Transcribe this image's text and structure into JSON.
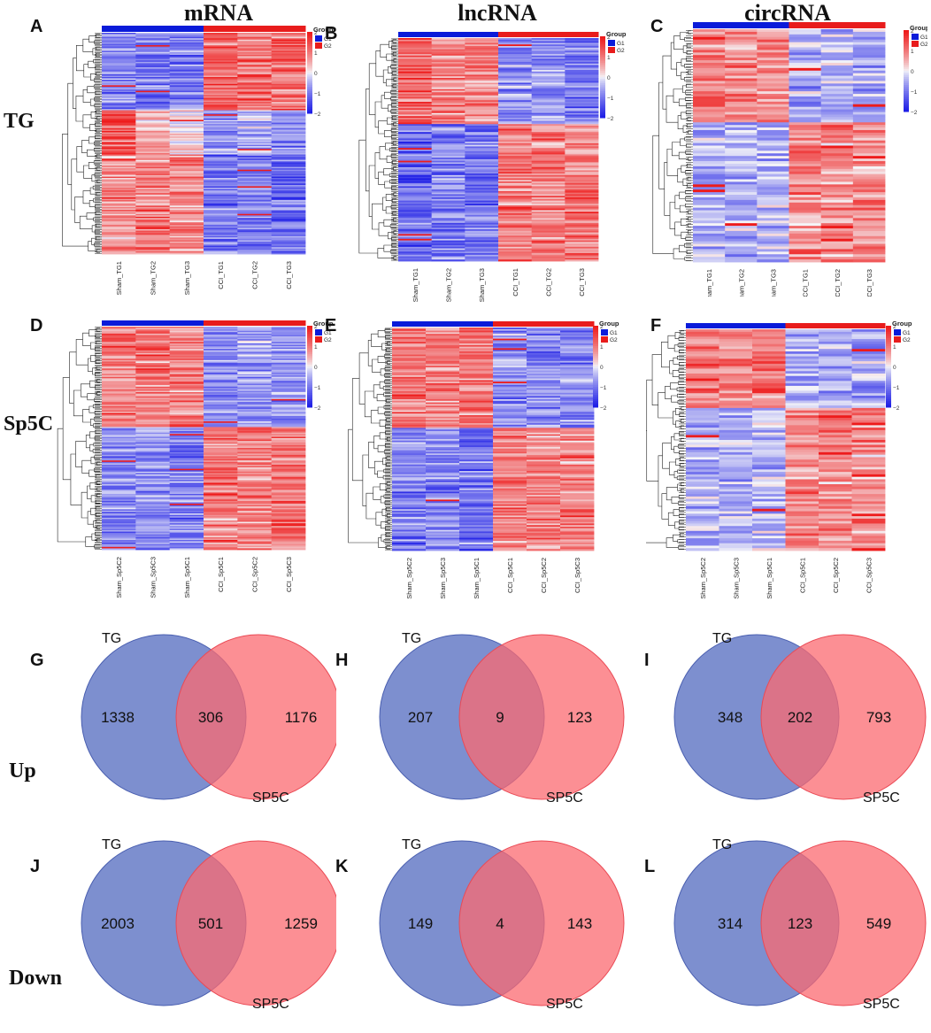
{
  "columns": [
    {
      "id": "mRNA",
      "title": "mRNA"
    },
    {
      "id": "lncRNA",
      "title": "lncRNA"
    },
    {
      "id": "circRNA",
      "title": "circRNA"
    }
  ],
  "rows": {
    "heatmap": [
      {
        "label": "TG"
      },
      {
        "label": "Sp5C"
      }
    ],
    "venn": [
      {
        "label": "Up"
      },
      {
        "label": "Down"
      }
    ]
  },
  "legend": {
    "title": "Group",
    "items": [
      "G1",
      "G2"
    ],
    "ticks": [
      "2",
      "1",
      "0",
      "−1",
      "−2"
    ],
    "colors": {
      "low": "#1f1fe6",
      "mid": "#f5f5f8",
      "high": "#ee1b1b",
      "g1": "#0a1bd9",
      "g2": "#e81c1c"
    }
  },
  "heatmaps": [
    {
      "letter": "A",
      "samples": [
        "Sham_TG1",
        "Sham_TG2",
        "Sham_TG3",
        "CCI_TG1",
        "CCI_TG2",
        "CCI_TG3"
      ]
    },
    {
      "letter": "B",
      "samples": [
        "Sham_TG1",
        "Sham_TG2",
        "Sham_TG3",
        "CCI_TG1",
        "CCI_TG2",
        "CCI_TG3"
      ]
    },
    {
      "letter": "C",
      "samples": [
        "Sham_TG1",
        "Sham_TG2",
        "Sham_TG3",
        "CCI_TG1",
        "CCI_TG2",
        "CCI_TG3"
      ]
    },
    {
      "letter": "D",
      "samples": [
        "Sham_Sp5C2",
        "Sham_Sp5C3",
        "Sham_Sp5C1",
        "CCI_Sp5C1",
        "CCI_Sp5C2",
        "CCI_Sp5C3"
      ]
    },
    {
      "letter": "E",
      "samples": [
        "Sham_Sp5C2",
        "Sham_Sp5C3",
        "Sham_Sp5C1",
        "CCI_Sp5C1",
        "CCI_Sp5C2",
        "CCI_Sp5C3"
      ]
    },
    {
      "letter": "F",
      "samples": [
        "Sham_Sp5C2",
        "Sham_Sp5C3",
        "Sham_Sp5C1",
        "CCI_Sp5C1",
        "CCI_Sp5C2",
        "CCI_Sp5C3"
      ]
    }
  ],
  "venn": [
    {
      "letter": "G",
      "left": "TG",
      "right": "SP5C",
      "only_left": "1338",
      "both": "306",
      "only_right": "1176"
    },
    {
      "letter": "H",
      "left": "TG",
      "right": "SP5C",
      "only_left": "207",
      "both": "9",
      "only_right": "123"
    },
    {
      "letter": "I",
      "left": "TG",
      "right": "SP5C",
      "only_left": "348",
      "both": "202",
      "only_right": "793"
    },
    {
      "letter": "J",
      "left": "TG",
      "right": "SP5C",
      "only_left": "2003",
      "both": "501",
      "only_right": "1259"
    },
    {
      "letter": "K",
      "left": "TG",
      "right": "SP5C",
      "only_left": "149",
      "both": "4",
      "only_right": "143"
    },
    {
      "letter": "L",
      "left": "TG",
      "right": "SP5C",
      "only_left": "314",
      "both": "123",
      "only_right": "549"
    }
  ]
}
